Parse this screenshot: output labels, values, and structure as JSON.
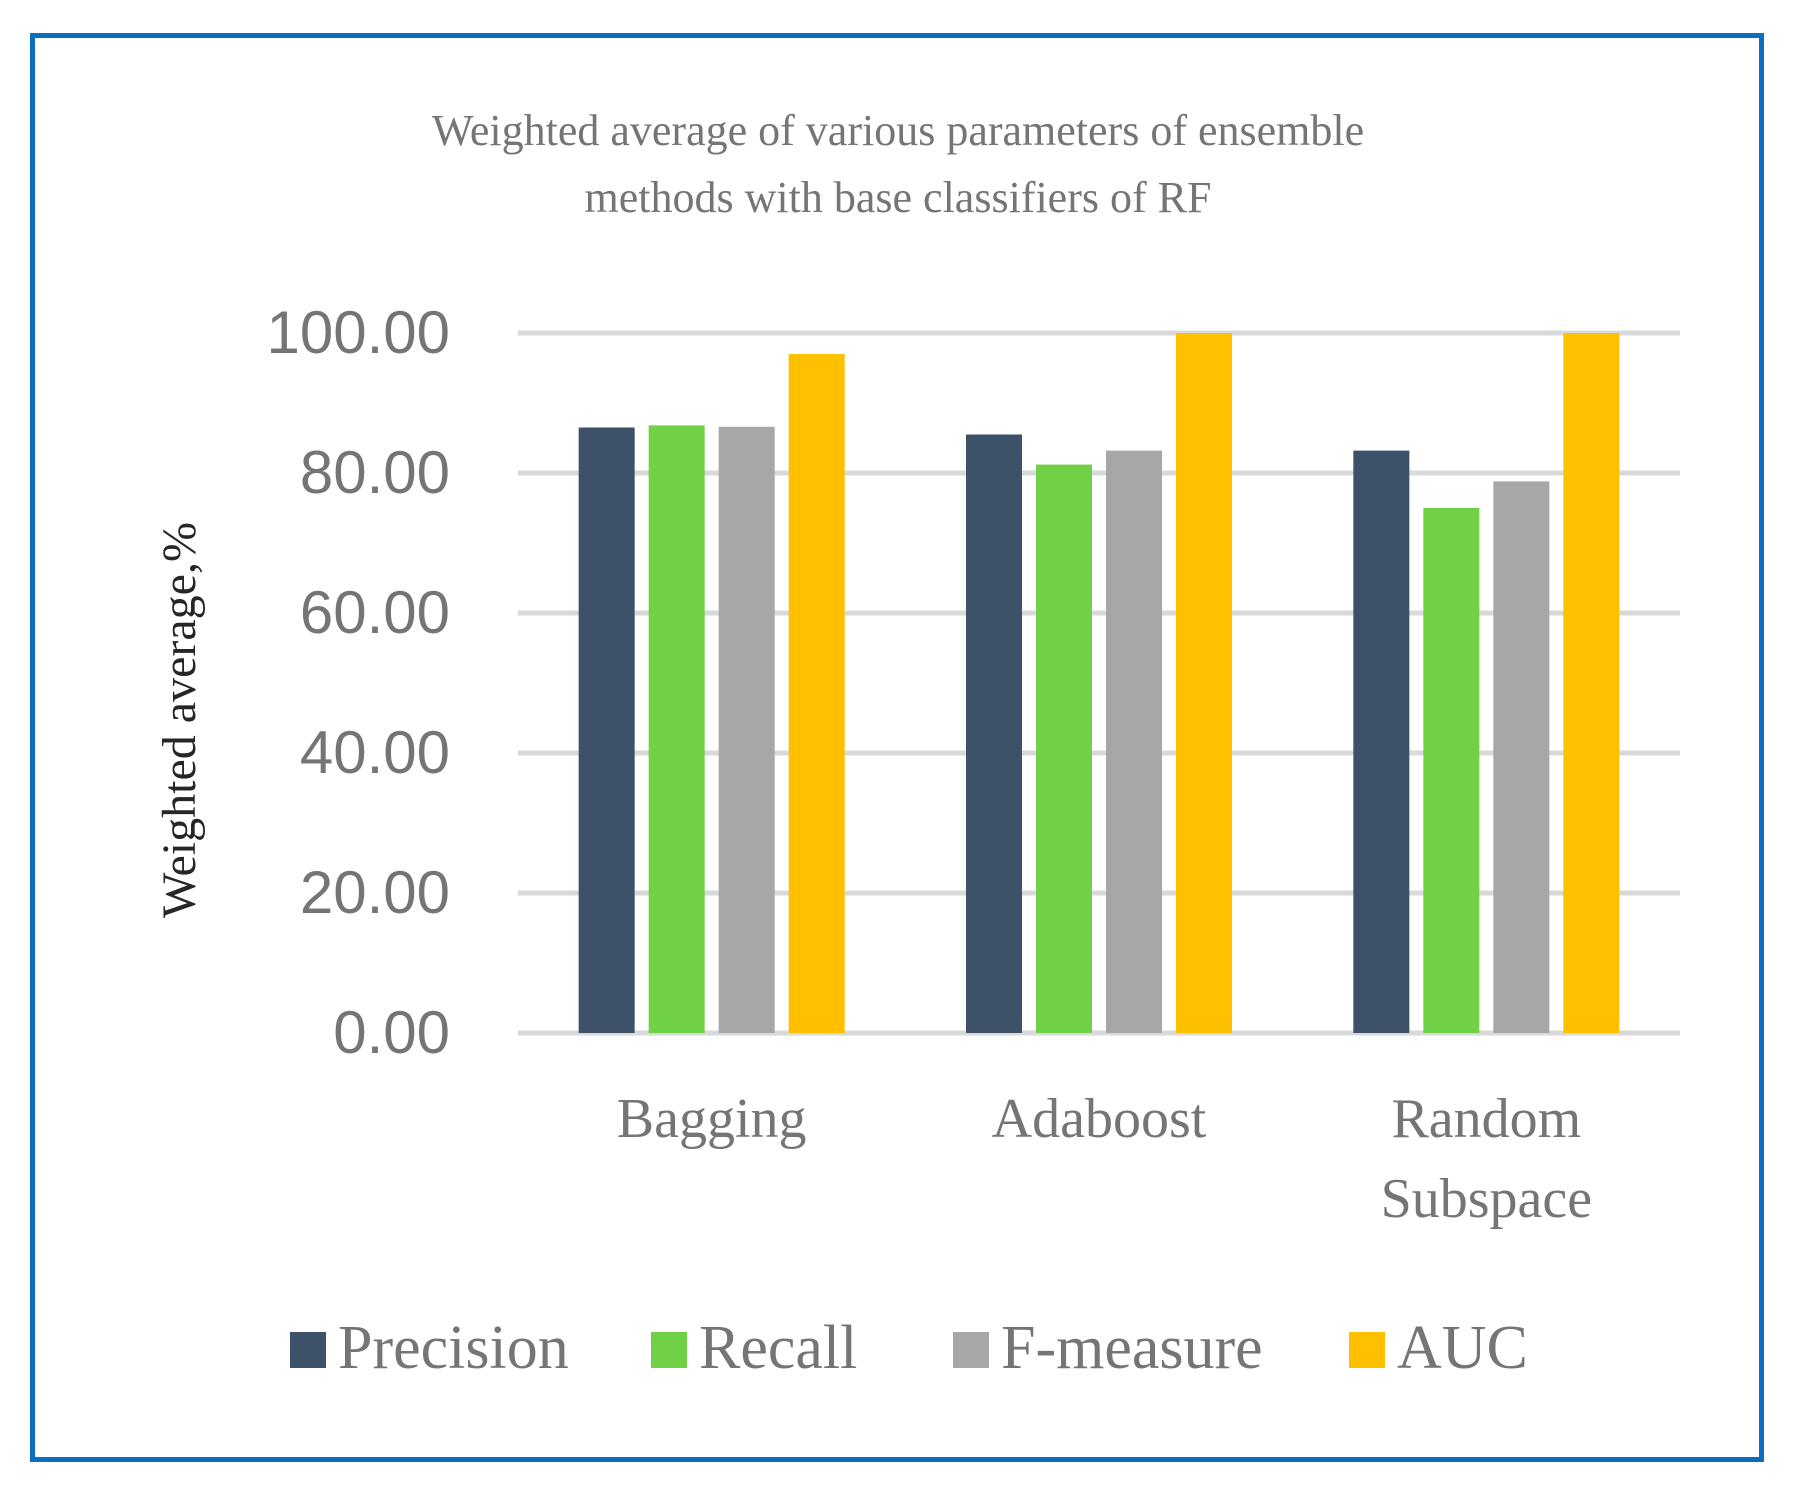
{
  "chart_data": {
    "type": "bar",
    "title_lines": [
      "Weighted average of various parameters of ensemble",
      "methods with base classifiers of  RF"
    ],
    "xlabel": "",
    "ylabel": "Weighted average,%",
    "ylim": [
      0,
      100
    ],
    "yticks": [
      0,
      20,
      40,
      60,
      80,
      100
    ],
    "ytick_labels": [
      "0.00",
      "20.00",
      "40.00",
      "60.00",
      "80.00",
      "100.00"
    ],
    "grid": true,
    "legend_position": "bottom",
    "categories": [
      {
        "lines": [
          "Bagging"
        ]
      },
      {
        "lines": [
          "Adaboost"
        ]
      },
      {
        "lines": [
          "Random",
          "Subspace"
        ]
      }
    ],
    "series": [
      {
        "name": "Precision",
        "color": "#3d5168",
        "values": [
          86.5,
          85.5,
          83.2
        ]
      },
      {
        "name": "Recall",
        "color": "#70d046",
        "values": [
          86.8,
          81.2,
          75.0
        ]
      },
      {
        "name": "F-measure",
        "color": "#a7a7a7",
        "values": [
          86.6,
          83.2,
          78.8
        ]
      },
      {
        "name": "AUC",
        "color": "#ffc000",
        "values": [
          97.0,
          100.0,
          100.0
        ]
      }
    ],
    "colors": {
      "frame": "#0a6fc0",
      "grid": "#d9d9d9",
      "text": "#757575",
      "axis_title": "#262626"
    }
  }
}
